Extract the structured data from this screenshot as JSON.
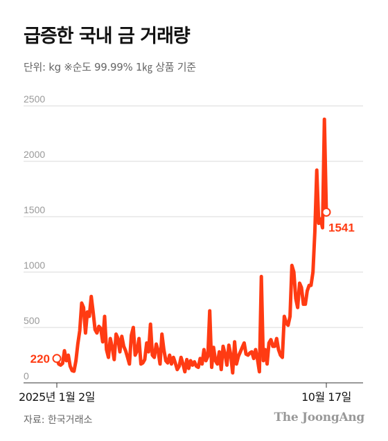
{
  "header": {
    "title": "급증한 국내 금 거래량",
    "subtitle": "단위: kg  ※순도 99.99% 1㎏ 상품 기준"
  },
  "footer": {
    "source": "자료: 한국거래소",
    "brand": "The JoongAng"
  },
  "colors": {
    "line": "#ff3b13",
    "grid": "#d9d9d9",
    "axis": "#333333",
    "point_label": "#ff3b13"
  },
  "chart_data": {
    "type": "line",
    "title": "급증한 국내 금 거래량",
    "ylabel": "",
    "xlabel": "",
    "unit": "kg",
    "ylim": [
      0,
      2500
    ],
    "yticks": [
      "0",
      "500",
      "1000",
      "1500",
      "2000",
      "2500"
    ],
    "grid": true,
    "x_tick_labels": [
      "2025년 1월 2일",
      "10월 17일"
    ],
    "annotations": [
      {
        "label": "220",
        "index": 0
      },
      {
        "label": "1541",
        "index": 189
      }
    ],
    "series": [
      {
        "values": [
          220,
          170,
          160,
          175,
          290,
          200,
          250,
          150,
          110,
          105,
          200,
          350,
          470,
          720,
          680,
          450,
          640,
          600,
          780,
          640,
          480,
          450,
          510,
          490,
          370,
          600,
          300,
          230,
          400,
          320,
          210,
          440,
          400,
          280,
          420,
          330,
          290,
          230,
          170,
          430,
          500,
          250,
          290,
          400,
          170,
          180,
          210,
          360,
          280,
          530,
          250,
          230,
          350,
          290,
          170,
          440,
          300,
          200,
          180,
          250,
          170,
          230,
          180,
          120,
          150,
          230,
          170,
          100,
          210,
          130,
          200,
          160,
          190,
          150,
          140,
          220,
          170,
          300,
          200,
          240,
          650,
          140,
          320,
          200,
          170,
          280,
          120,
          330,
          260,
          160,
          340,
          250,
          90,
          370,
          170,
          240,
          280,
          320,
          360,
          260,
          250,
          270,
          280,
          220,
          300,
          210,
          100,
          960,
          200,
          300,
          170,
          360,
          390,
          330,
          330,
          400,
          300,
          250,
          230,
          600,
          540,
          520,
          600,
          1060,
          1000,
          760,
          680,
          900,
          860,
          710,
          710,
          830,
          880,
          880,
          1000,
          1360,
          1920,
          1440,
          1480,
          1400,
          2380,
          1541
        ]
      }
    ]
  }
}
